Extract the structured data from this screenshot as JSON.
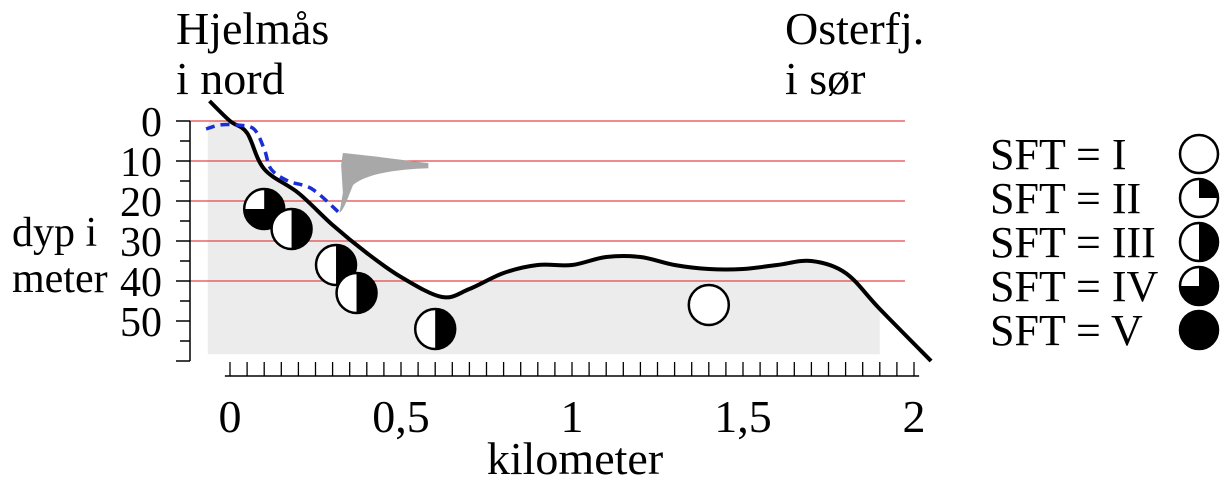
{
  "labels": {
    "north_line1": "Hjelmås",
    "north_line2": "i nord",
    "south_line1": "Osterfj.",
    "south_line2": "i sør",
    "y_axis_line1": "dyp i",
    "y_axis_line2": "meter",
    "x_axis": "kilometer"
  },
  "y_ticks": [
    {
      "value": 0,
      "label": "0"
    },
    {
      "value": 10,
      "label": "10"
    },
    {
      "value": 20,
      "label": "20"
    },
    {
      "value": 30,
      "label": "30"
    },
    {
      "value": 40,
      "label": "40"
    },
    {
      "value": 50,
      "label": "50"
    }
  ],
  "x_ticks": [
    {
      "value": 0,
      "label": "0"
    },
    {
      "value": 0.5,
      "label": "0,5"
    },
    {
      "value": 1,
      "label": "1"
    },
    {
      "value": 1.5,
      "label": "1,5"
    },
    {
      "value": 2,
      "label": "2"
    }
  ],
  "chart_data": {
    "type": "line",
    "xlim": [
      -0.07,
      2.05
    ],
    "ylim": [
      0,
      60
    ],
    "reference_depths": [
      0,
      10,
      20,
      30,
      40
    ],
    "bottom_profile": [
      [
        -0.06,
        -5
      ],
      [
        0.0,
        0
      ],
      [
        0.05,
        3
      ],
      [
        0.1,
        12
      ],
      [
        0.2,
        18
      ],
      [
        0.3,
        26
      ],
      [
        0.4,
        33
      ],
      [
        0.5,
        39
      ],
      [
        0.62,
        44
      ],
      [
        0.7,
        42
      ],
      [
        0.8,
        38
      ],
      [
        0.9,
        36
      ],
      [
        1.0,
        36
      ],
      [
        1.1,
        34
      ],
      [
        1.2,
        34
      ],
      [
        1.3,
        36
      ],
      [
        1.4,
        37
      ],
      [
        1.5,
        37
      ],
      [
        1.6,
        36
      ],
      [
        1.7,
        35
      ],
      [
        1.8,
        38
      ],
      [
        1.9,
        47
      ],
      [
        2.05,
        60
      ]
    ],
    "dashed_profile": [
      [
        -0.07,
        2
      ],
      [
        -0.03,
        1
      ],
      [
        0.02,
        1
      ],
      [
        0.07,
        2
      ],
      [
        0.1,
        7
      ],
      [
        0.12,
        12
      ],
      [
        0.17,
        15
      ],
      [
        0.24,
        17
      ],
      [
        0.32,
        23
      ]
    ],
    "sediment_samples": [
      {
        "x": 0.1,
        "depth": 22,
        "class": "IV"
      },
      {
        "x": 0.18,
        "depth": 27,
        "class": "III"
      },
      {
        "x": 0.31,
        "depth": 36,
        "class": "III"
      },
      {
        "x": 0.37,
        "depth": 43,
        "class": "III"
      },
      {
        "x": 0.6,
        "depth": 52,
        "class": "III"
      },
      {
        "x": 1.4,
        "depth": 46,
        "class": "I"
      }
    ],
    "colors": {
      "reference_lines": "#e04848",
      "dashed_profile": "#1a2ed8",
      "water_fill": "#ececec",
      "plume": "#a8a8a8"
    }
  },
  "legend": [
    {
      "label": "SFT = I",
      "class": "I"
    },
    {
      "label": "SFT = II",
      "class": "II"
    },
    {
      "label": "SFT = III",
      "class": "III"
    },
    {
      "label": "SFT = IV",
      "class": "IV"
    },
    {
      "label": "SFT = V",
      "class": "V"
    }
  ]
}
